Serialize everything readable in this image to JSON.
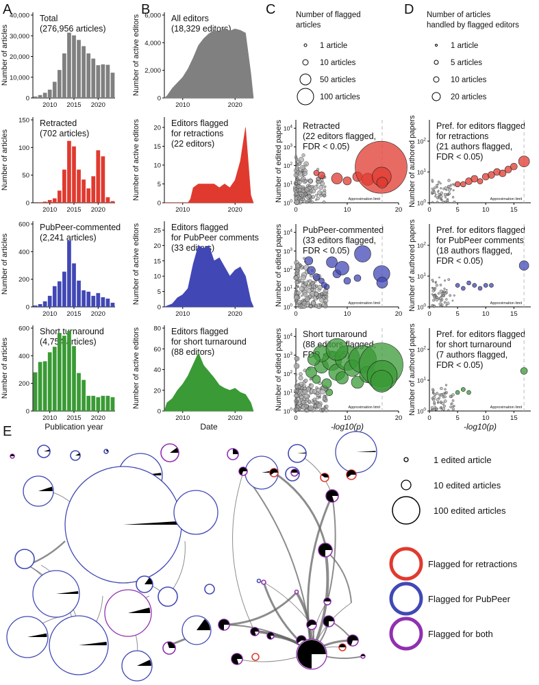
{
  "panel_letters": [
    "A",
    "B",
    "C",
    "D",
    "E"
  ],
  "colors": {
    "gray": "#808080",
    "red": "#E03A2F",
    "blue": "#4148B5",
    "green": "#3A9A35",
    "purple": "#9030B0",
    "black": "#000000"
  },
  "approx_limit_label": "Approximation limit",
  "chart_data": [
    {
      "id": "A0",
      "type": "bar",
      "title": "Total",
      "subtitle": "(276,956 articles)",
      "ylabel": "Number of articles",
      "ylim": [
        0,
        40000
      ],
      "yticks": [
        "0",
        "10,000",
        "20,000",
        "30,000",
        "40,000"
      ],
      "xticks": [
        "2010",
        "2015",
        "2020"
      ],
      "categories": [
        "2007",
        "2008",
        "2009",
        "2010",
        "2011",
        "2012",
        "2013",
        "2014",
        "2015",
        "2016",
        "2017",
        "2018",
        "2019",
        "2020",
        "2021",
        "2022",
        "2023"
      ],
      "values": [
        700,
        1400,
        2500,
        4000,
        7800,
        13500,
        21500,
        31500,
        30200,
        28000,
        25000,
        21500,
        19000,
        15800,
        16200,
        16000,
        12200
      ],
      "color": "gray"
    },
    {
      "id": "A1",
      "type": "bar",
      "title": "Retracted",
      "subtitle": "(702 articles)",
      "ylabel": "Number of articles",
      "ylim": [
        0,
        150
      ],
      "yticks": [
        "0",
        "50",
        "100",
        "150"
      ],
      "xticks": [
        "2010",
        "2015",
        "2020"
      ],
      "categories": [
        "2007",
        "2008",
        "2009",
        "2010",
        "2011",
        "2012",
        "2013",
        "2014",
        "2015",
        "2016",
        "2017",
        "2018",
        "2019",
        "2020",
        "2021",
        "2022",
        "2023"
      ],
      "values": [
        0,
        1,
        2,
        5,
        8,
        22,
        60,
        112,
        102,
        60,
        42,
        26,
        48,
        95,
        84,
        10,
        3
      ],
      "color": "red"
    },
    {
      "id": "A2",
      "type": "bar",
      "title": "PubPeer-commented",
      "subtitle": "(2,241 articles)",
      "ylabel": "Number of articles",
      "ylim": [
        0,
        600
      ],
      "yticks": [
        "0",
        "200",
        "400",
        "600"
      ],
      "xticks": [
        "2010",
        "2015",
        "2020"
      ],
      "categories": [
        "2007",
        "2008",
        "2009",
        "2010",
        "2011",
        "2012",
        "2013",
        "2014",
        "2015",
        "2016",
        "2017",
        "2018",
        "2019",
        "2020",
        "2021",
        "2022",
        "2023"
      ],
      "values": [
        10,
        20,
        40,
        80,
        150,
        185,
        255,
        480,
        315,
        190,
        120,
        110,
        80,
        100,
        70,
        60,
        30
      ],
      "color": "blue"
    },
    {
      "id": "A3",
      "type": "bar",
      "title": "Short turnaround",
      "subtitle": "(4,754 articles)",
      "ylabel": "Number of articles",
      "ylim": [
        0,
        600
      ],
      "yticks": [
        "0",
        "200",
        "400",
        "600"
      ],
      "xticks": [
        "2010",
        "2015",
        "2020"
      ],
      "xlabel": "Publication year",
      "categories": [
        "2007",
        "2008",
        "2009",
        "2010",
        "2011",
        "2012",
        "2013",
        "2014",
        "2015",
        "2016",
        "2017",
        "2018",
        "2019",
        "2020",
        "2021",
        "2022",
        "2023"
      ],
      "values": [
        280,
        355,
        360,
        425,
        465,
        565,
        545,
        580,
        470,
        275,
        225,
        110,
        110,
        100,
        110,
        110,
        100
      ],
      "color": "green"
    },
    {
      "id": "B0",
      "type": "area",
      "title": "All editors",
      "subtitle": "(18,329 editors)",
      "ylabel": "Number of active editors",
      "ylim": [
        0,
        6000
      ],
      "yticks": [
        "0",
        "2,000",
        "4,000",
        "6,000"
      ],
      "xticks": [
        "2010",
        "2020"
      ],
      "x": [
        2006.5,
        2007,
        2008,
        2009,
        2010,
        2011,
        2012,
        2013,
        2014,
        2015,
        2016,
        2017,
        2018,
        2019,
        2020,
        2021,
        2022,
        2023,
        2023.5
      ],
      "values": [
        0,
        150,
        700,
        1100,
        1500,
        2100,
        2900,
        3800,
        4300,
        4650,
        4900,
        4800,
        5050,
        4850,
        5000,
        4900,
        4700,
        1800,
        0
      ],
      "color": "gray"
    },
    {
      "id": "B1",
      "type": "area",
      "title": "Editors flagged",
      "subtitle": "for retractions",
      "subtitle2": "(22 editors)",
      "ylabel": "Number of active editors",
      "ylim": [
        0,
        22
      ],
      "yticks": [
        "0",
        "5",
        "10",
        "15",
        "20"
      ],
      "xticks": [
        "2010",
        "2020"
      ],
      "x": [
        2006.5,
        2011,
        2011.5,
        2012,
        2013,
        2016,
        2017,
        2018,
        2019,
        2020,
        2021,
        2022,
        2023,
        2023.5
      ],
      "values": [
        0,
        0,
        1,
        4,
        5,
        5,
        4,
        5,
        4,
        6,
        11,
        20,
        2,
        0
      ],
      "color": "red"
    },
    {
      "id": "B2",
      "type": "area",
      "title": "Editors flagged",
      "subtitle": "for PubPeer comments",
      "subtitle2": "(33 editors)",
      "ylabel": "Number of active editors",
      "ylim": [
        0,
        27
      ],
      "yticks": [
        "0",
        "5",
        "10",
        "15",
        "20",
        "25"
      ],
      "xticks": [
        "2010",
        "2020"
      ],
      "x": [
        2006.5,
        2008,
        2009,
        2010,
        2011,
        2012,
        2013,
        2014,
        2015,
        2016,
        2017,
        2018,
        2019,
        2020,
        2021,
        2022,
        2023,
        2023.5
      ],
      "values": [
        0,
        1,
        3,
        4,
        6,
        14,
        20,
        19,
        20,
        15,
        16,
        13,
        10,
        12,
        13,
        10,
        2,
        0
      ],
      "color": "blue"
    },
    {
      "id": "B3",
      "type": "area",
      "title": "Editors flagged",
      "subtitle": "for short turnaround",
      "subtitle2": "(88 editors)",
      "ylabel": "Number of active editors",
      "ylim": [
        0,
        80
      ],
      "yticks": [
        "0",
        "20",
        "40",
        "60",
        "80"
      ],
      "xticks": [
        "2010",
        "2020"
      ],
      "xlabel": "Date",
      "x": [
        2006.5,
        2007,
        2008,
        2009,
        2010,
        2011,
        2012,
        2013,
        2014,
        2015,
        2016,
        2017,
        2018,
        2019,
        2020,
        2021,
        2022,
        2023,
        2023.5
      ],
      "values": [
        0,
        8,
        12,
        20,
        26,
        34,
        45,
        56,
        44,
        38,
        32,
        25,
        22,
        20,
        22,
        18,
        16,
        8,
        0
      ],
      "color": "green"
    },
    {
      "id": "C1",
      "type": "scatter",
      "title": "Retracted",
      "subtitle": "(22 editors flagged,",
      "subtitle2": "FDR < 0.05)",
      "ylabel": "Number of edited papers",
      "log_y": true,
      "ylim": [
        1,
        20000
      ],
      "yticks": [
        "10^0",
        "10^1",
        "10^2",
        "10^3",
        "10^4"
      ],
      "xlim": [
        0,
        20
      ],
      "xticks": [
        "0",
        "10",
        "20"
      ],
      "approx_limit": 16.8,
      "color": "red",
      "flagged": [
        [
          8,
          20,
          8
        ],
        [
          10,
          15,
          6
        ],
        [
          12,
          25,
          7
        ],
        [
          14,
          18,
          9
        ],
        [
          16.6,
          80,
          38
        ],
        [
          16.7,
          25,
          14
        ],
        [
          16.8,
          12,
          8
        ],
        [
          5,
          30,
          5
        ],
        [
          4,
          40,
          4
        ]
      ]
    },
    {
      "id": "C2",
      "type": "scatter",
      "title": "PubPeer-commented",
      "subtitle": "(33 editors flagged,",
      "subtitle2": "FDR < 0.05)",
      "ylabel": "Number of edited papers",
      "log_y": true,
      "ylim": [
        1,
        20000
      ],
      "yticks": [
        "10^0",
        "10^1",
        "10^2",
        "10^3",
        "10^4"
      ],
      "xlim": [
        0,
        20
      ],
      "xticks": [
        "0",
        "10",
        "20"
      ],
      "approx_limit": 16.8,
      "color": "blue",
      "flagged": [
        [
          3,
          90,
          6
        ],
        [
          4,
          40,
          5
        ],
        [
          5,
          25,
          4
        ],
        [
          6,
          12,
          4
        ],
        [
          7,
          250,
          8
        ],
        [
          8,
          60,
          6
        ],
        [
          9,
          120,
          10
        ],
        [
          10,
          25,
          5
        ],
        [
          12,
          35,
          5
        ],
        [
          13,
          700,
          12
        ],
        [
          16.7,
          60,
          12
        ],
        [
          16.8,
          20,
          8
        ],
        [
          2.5,
          300,
          6
        ],
        [
          5.5,
          15,
          4
        ]
      ]
    },
    {
      "id": "C3",
      "type": "scatter",
      "title": "Short turnaround",
      "subtitle": "(88 editors flagged,",
      "subtitle2": "FDR < 0.05)",
      "ylabel": "Number of edited papers",
      "log_y": true,
      "ylim": [
        1,
        20000
      ],
      "yticks": [
        "10^0",
        "10^1",
        "10^2",
        "10^3",
        "10^4"
      ],
      "xlim": [
        0,
        20
      ],
      "xticks": [
        "0",
        "10",
        "20"
      ],
      "xlabel": "-log10(p)",
      "approx_limit": 16.8,
      "color": "green",
      "flagged": [
        [
          3,
          120,
          8
        ],
        [
          4,
          50,
          6
        ],
        [
          5,
          250,
          10
        ],
        [
          6,
          30,
          7
        ],
        [
          7,
          500,
          14
        ],
        [
          8,
          120,
          12
        ],
        [
          9,
          60,
          9
        ],
        [
          10,
          700,
          18
        ],
        [
          11,
          200,
          12
        ],
        [
          12,
          35,
          9
        ],
        [
          13,
          600,
          20
        ],
        [
          14,
          90,
          12
        ],
        [
          16.6,
          300,
          32
        ],
        [
          16.8,
          80,
          22
        ],
        [
          16.7,
          40,
          16
        ],
        [
          5,
          1200,
          12
        ],
        [
          8,
          2000,
          16
        ],
        [
          3.5,
          600,
          9
        ],
        [
          6.5,
          10,
          5
        ]
      ]
    },
    {
      "id": "D1",
      "type": "scatter",
      "title": "Pref. for editors flagged",
      "subtitle": "for retractions",
      "subtitle2": "(21 authors flagged,",
      "subtitle3": "FDR < 0.05)",
      "ylabel": "Number of authored papers",
      "log_y": true,
      "ylim": [
        1,
        400
      ],
      "yticks": [
        "10^0",
        "10^1",
        "10^2"
      ],
      "xlim": [
        0,
        18
      ],
      "xticks": [
        "0",
        "5",
        "10",
        "15"
      ],
      "approx_limit": 16.8,
      "color": "red",
      "flagged": [
        [
          5,
          4,
          4
        ],
        [
          6,
          4,
          4
        ],
        [
          7,
          5,
          5
        ],
        [
          8,
          6,
          5
        ],
        [
          9,
          5,
          4
        ],
        [
          10,
          7,
          5
        ],
        [
          11,
          8,
          5
        ],
        [
          12,
          10,
          5
        ],
        [
          13,
          9,
          5
        ],
        [
          14,
          12,
          5
        ],
        [
          15,
          15,
          5
        ],
        [
          16.8,
          22,
          8
        ]
      ]
    },
    {
      "id": "D2",
      "type": "scatter",
      "title": "Pref. for editors flagged",
      "subtitle": "for PubPeer comments",
      "subtitle2": "(18 authors flagged,",
      "subtitle3": "FDR < 0.05)",
      "ylabel": "Number of authored papers",
      "log_y": true,
      "ylim": [
        1,
        400
      ],
      "yticks": [
        "10^0",
        "10^1",
        "10^2"
      ],
      "xlim": [
        0,
        18
      ],
      "xticks": [
        "0",
        "5",
        "10",
        "15"
      ],
      "approx_limit": 16.8,
      "color": "blue",
      "flagged": [
        [
          5,
          5,
          3
        ],
        [
          6,
          4,
          3
        ],
        [
          7,
          6,
          3
        ],
        [
          8,
          5,
          3
        ],
        [
          9,
          4,
          3
        ],
        [
          10,
          5,
          3
        ],
        [
          11,
          5,
          3
        ],
        [
          16.8,
          22,
          7
        ]
      ]
    },
    {
      "id": "D3",
      "type": "scatter",
      "title": "Pref. for editors flagged",
      "subtitle": "for short turnaround",
      "subtitle2": "(7 authors flagged,",
      "subtitle3": "FDR < 0.05)",
      "ylabel": "Number of authored papers",
      "log_y": true,
      "ylim": [
        1,
        400
      ],
      "yticks": [
        "10^0",
        "10^1",
        "10^2"
      ],
      "xlim": [
        0,
        18
      ],
      "xticks": [
        "0",
        "5",
        "10",
        "15"
      ],
      "xlabel": "-log10(p)",
      "approx_limit": 16.8,
      "color": "green",
      "flagged": [
        [
          5,
          4,
          3
        ],
        [
          6,
          5,
          3
        ],
        [
          7,
          4,
          3
        ],
        [
          16.8,
          20,
          5
        ]
      ]
    }
  ],
  "legend_C": {
    "title": "Number of flagged",
    "title2": "articles",
    "items": [
      "1 article",
      "10 articles",
      "50 articles",
      "100 articles"
    ]
  },
  "legend_D": {
    "title": "Number of articles",
    "title2": "handled by flagged editors",
    "items": [
      "1 article",
      "5 articles",
      "10 articles",
      "20 articles"
    ]
  },
  "legend_E": {
    "sizes": [
      "1 edited article",
      "10 edited articles",
      "100 edited articles"
    ],
    "flags": [
      "Flagged for retractions",
      "Flagged for PubPeer",
      "Flagged for both"
    ]
  }
}
